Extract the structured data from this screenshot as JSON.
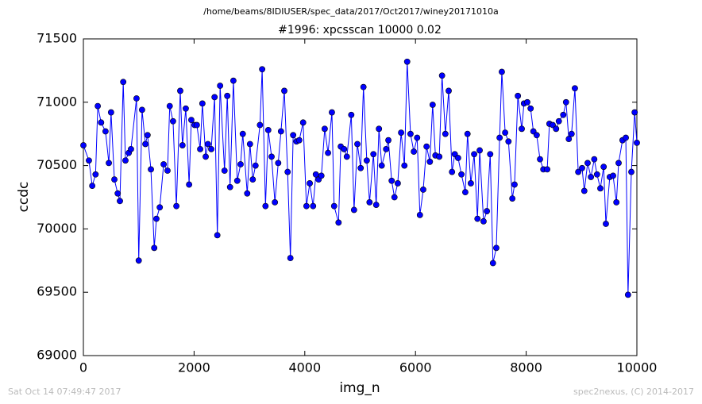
{
  "chart_data": {
    "type": "line",
    "title": "/home/beams/8IDIUSER/spec_data/2017/Oct2017/winey20171010a",
    "subtitle": "#1996: xpcsscan 10000 0.02",
    "xlabel": "img_n",
    "ylabel": "ccdc",
    "footer_left": "Sat Oct 14 07:49:47 2017",
    "footer_right": "spec2nexus, (C) 2014-2017",
    "xlim": [
      0,
      10000
    ],
    "ylim": [
      69000,
      71500
    ],
    "xticks": [
      0,
      2000,
      4000,
      6000,
      8000,
      10000
    ],
    "yticks": [
      69000,
      69500,
      70000,
      70500,
      71000,
      71500
    ],
    "series": [
      {
        "color": "#0000ff",
        "x": [
          0,
          100,
          160,
          220,
          260,
          320,
          400,
          460,
          500,
          560,
          620,
          660,
          720,
          760,
          820,
          860,
          960,
          1000,
          1060,
          1120,
          1160,
          1220,
          1280,
          1320,
          1380,
          1450,
          1520,
          1560,
          1620,
          1680,
          1750,
          1790,
          1850,
          1910,
          1950,
          2010,
          2050,
          2110,
          2150,
          2210,
          2250,
          2310,
          2370,
          2420,
          2470,
          2550,
          2600,
          2650,
          2710,
          2780,
          2840,
          2880,
          2960,
          3010,
          3060,
          3110,
          3190,
          3230,
          3290,
          3340,
          3400,
          3460,
          3520,
          3570,
          3630,
          3690,
          3740,
          3790,
          3850,
          3900,
          3970,
          4030,
          4090,
          4150,
          4200,
          4250,
          4300,
          4360,
          4420,
          4490,
          4530,
          4610,
          4650,
          4710,
          4760,
          4840,
          4890,
          4950,
          5010,
          5060,
          5120,
          5170,
          5240,
          5290,
          5340,
          5390,
          5470,
          5510,
          5570,
          5620,
          5680,
          5740,
          5800,
          5850,
          5910,
          5970,
          6030,
          6080,
          6140,
          6200,
          6260,
          6310,
          6360,
          6430,
          6480,
          6540,
          6600,
          6660,
          6710,
          6770,
          6830,
          6900,
          6940,
          7000,
          7060,
          7120,
          7160,
          7230,
          7290,
          7350,
          7400,
          7460,
          7520,
          7560,
          7620,
          7680,
          7750,
          7790,
          7850,
          7920,
          7960,
          8020,
          8080,
          8130,
          8190,
          8250,
          8310,
          8380,
          8420,
          8480,
          8540,
          8590,
          8670,
          8720,
          8770,
          8820,
          8880,
          8940,
          9010,
          9050,
          9110,
          9170,
          9230,
          9280,
          9340,
          9400,
          9440,
          9510,
          9570,
          9630,
          9670,
          9740,
          9800,
          9840,
          9900,
          9960,
          10000
        ],
        "values": [
          70660,
          70540,
          70340,
          70430,
          70970,
          70840,
          70770,
          70520,
          70920,
          70390,
          70280,
          70220,
          71160,
          70540,
          70600,
          70630,
          71030,
          69750,
          70940,
          70670,
          70740,
          70470,
          69850,
          70080,
          70170,
          70510,
          70460,
          70970,
          70850,
          70180,
          71090,
          70660,
          70950,
          70350,
          70860,
          70820,
          70820,
          70630,
          70990,
          70570,
          70670,
          70630,
          71040,
          69950,
          71130,
          70460,
          71050,
          70330,
          71170,
          70380,
          70510,
          70750,
          70280,
          70670,
          70390,
          70500,
          70820,
          71260,
          70180,
          70780,
          70570,
          70210,
          70520,
          70770,
          71090,
          70450,
          69770,
          70740,
          70690,
          70700,
          70840,
          70180,
          70360,
          70180,
          70430,
          70390,
          70420,
          70790,
          70600,
          70920,
          70180,
          70050,
          70650,
          70630,
          70570,
          70900,
          70150,
          70670,
          70480,
          71120,
          70540,
          70210,
          70590,
          70190,
          70790,
          70500,
          70630,
          70700,
          70380,
          70250,
          70360,
          70760,
          70500,
          71320,
          70750,
          70610,
          70720,
          70110,
          70310,
          70650,
          70530,
          70980,
          70580,
          70570,
          71210,
          70750,
          71090,
          70450,
          70590,
          70560,
          70430,
          70290,
          70750,
          70360,
          70590,
          70080,
          70620,
          70060,
          70140,
          70590,
          69730,
          69850,
          70720,
          71240,
          70760,
          70690,
          70240,
          70350,
          71050,
          70790,
          70990,
          71000,
          70950,
          70770,
          70740,
          70550,
          70470,
          70470,
          70830,
          70820,
          70790,
          70850,
          70900,
          71000,
          70710,
          70750,
          71110,
          70450,
          70480,
          70300,
          70520,
          70410,
          70550,
          70430,
          70320,
          70490,
          70040,
          70410,
          70420,
          70210,
          70520,
          70700,
          70720,
          69480,
          70450,
          70920,
          70680
        ]
      }
    ]
  }
}
